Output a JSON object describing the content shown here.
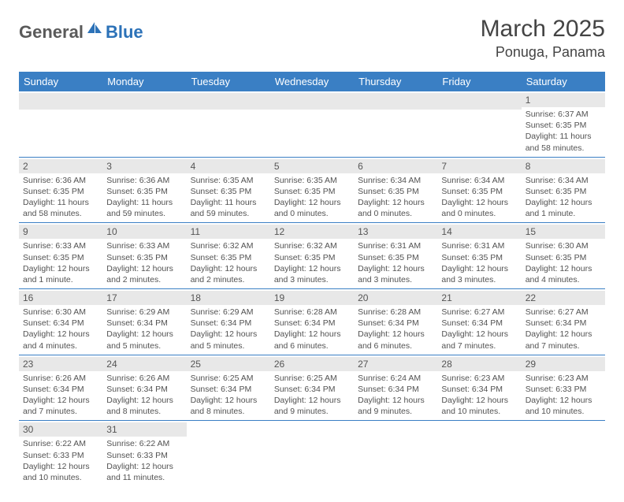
{
  "brand": {
    "part1": "General",
    "part2": "Blue"
  },
  "title": "March 2025",
  "location": "Ponuga, Panama",
  "colors": {
    "header_bg": "#3a7fc4",
    "header_text": "#ffffff",
    "daynum_bg": "#e8e8e8",
    "text": "#525252",
    "accent": "#2c72b8",
    "row_border": "#3a7fc4"
  },
  "weekdays": [
    "Sunday",
    "Monday",
    "Tuesday",
    "Wednesday",
    "Thursday",
    "Friday",
    "Saturday"
  ],
  "weeks": [
    [
      null,
      null,
      null,
      null,
      null,
      null,
      {
        "n": "1",
        "sr": "Sunrise: 6:37 AM",
        "ss": "Sunset: 6:35 PM",
        "dl": "Daylight: 11 hours and 58 minutes."
      }
    ],
    [
      {
        "n": "2",
        "sr": "Sunrise: 6:36 AM",
        "ss": "Sunset: 6:35 PM",
        "dl": "Daylight: 11 hours and 58 minutes."
      },
      {
        "n": "3",
        "sr": "Sunrise: 6:36 AM",
        "ss": "Sunset: 6:35 PM",
        "dl": "Daylight: 11 hours and 59 minutes."
      },
      {
        "n": "4",
        "sr": "Sunrise: 6:35 AM",
        "ss": "Sunset: 6:35 PM",
        "dl": "Daylight: 11 hours and 59 minutes."
      },
      {
        "n": "5",
        "sr": "Sunrise: 6:35 AM",
        "ss": "Sunset: 6:35 PM",
        "dl": "Daylight: 12 hours and 0 minutes."
      },
      {
        "n": "6",
        "sr": "Sunrise: 6:34 AM",
        "ss": "Sunset: 6:35 PM",
        "dl": "Daylight: 12 hours and 0 minutes."
      },
      {
        "n": "7",
        "sr": "Sunrise: 6:34 AM",
        "ss": "Sunset: 6:35 PM",
        "dl": "Daylight: 12 hours and 0 minutes."
      },
      {
        "n": "8",
        "sr": "Sunrise: 6:34 AM",
        "ss": "Sunset: 6:35 PM",
        "dl": "Daylight: 12 hours and 1 minute."
      }
    ],
    [
      {
        "n": "9",
        "sr": "Sunrise: 6:33 AM",
        "ss": "Sunset: 6:35 PM",
        "dl": "Daylight: 12 hours and 1 minute."
      },
      {
        "n": "10",
        "sr": "Sunrise: 6:33 AM",
        "ss": "Sunset: 6:35 PM",
        "dl": "Daylight: 12 hours and 2 minutes."
      },
      {
        "n": "11",
        "sr": "Sunrise: 6:32 AM",
        "ss": "Sunset: 6:35 PM",
        "dl": "Daylight: 12 hours and 2 minutes."
      },
      {
        "n": "12",
        "sr": "Sunrise: 6:32 AM",
        "ss": "Sunset: 6:35 PM",
        "dl": "Daylight: 12 hours and 3 minutes."
      },
      {
        "n": "13",
        "sr": "Sunrise: 6:31 AM",
        "ss": "Sunset: 6:35 PM",
        "dl": "Daylight: 12 hours and 3 minutes."
      },
      {
        "n": "14",
        "sr": "Sunrise: 6:31 AM",
        "ss": "Sunset: 6:35 PM",
        "dl": "Daylight: 12 hours and 3 minutes."
      },
      {
        "n": "15",
        "sr": "Sunrise: 6:30 AM",
        "ss": "Sunset: 6:35 PM",
        "dl": "Daylight: 12 hours and 4 minutes."
      }
    ],
    [
      {
        "n": "16",
        "sr": "Sunrise: 6:30 AM",
        "ss": "Sunset: 6:34 PM",
        "dl": "Daylight: 12 hours and 4 minutes."
      },
      {
        "n": "17",
        "sr": "Sunrise: 6:29 AM",
        "ss": "Sunset: 6:34 PM",
        "dl": "Daylight: 12 hours and 5 minutes."
      },
      {
        "n": "18",
        "sr": "Sunrise: 6:29 AM",
        "ss": "Sunset: 6:34 PM",
        "dl": "Daylight: 12 hours and 5 minutes."
      },
      {
        "n": "19",
        "sr": "Sunrise: 6:28 AM",
        "ss": "Sunset: 6:34 PM",
        "dl": "Daylight: 12 hours and 6 minutes."
      },
      {
        "n": "20",
        "sr": "Sunrise: 6:28 AM",
        "ss": "Sunset: 6:34 PM",
        "dl": "Daylight: 12 hours and 6 minutes."
      },
      {
        "n": "21",
        "sr": "Sunrise: 6:27 AM",
        "ss": "Sunset: 6:34 PM",
        "dl": "Daylight: 12 hours and 7 minutes."
      },
      {
        "n": "22",
        "sr": "Sunrise: 6:27 AM",
        "ss": "Sunset: 6:34 PM",
        "dl": "Daylight: 12 hours and 7 minutes."
      }
    ],
    [
      {
        "n": "23",
        "sr": "Sunrise: 6:26 AM",
        "ss": "Sunset: 6:34 PM",
        "dl": "Daylight: 12 hours and 7 minutes."
      },
      {
        "n": "24",
        "sr": "Sunrise: 6:26 AM",
        "ss": "Sunset: 6:34 PM",
        "dl": "Daylight: 12 hours and 8 minutes."
      },
      {
        "n": "25",
        "sr": "Sunrise: 6:25 AM",
        "ss": "Sunset: 6:34 PM",
        "dl": "Daylight: 12 hours and 8 minutes."
      },
      {
        "n": "26",
        "sr": "Sunrise: 6:25 AM",
        "ss": "Sunset: 6:34 PM",
        "dl": "Daylight: 12 hours and 9 minutes."
      },
      {
        "n": "27",
        "sr": "Sunrise: 6:24 AM",
        "ss": "Sunset: 6:34 PM",
        "dl": "Daylight: 12 hours and 9 minutes."
      },
      {
        "n": "28",
        "sr": "Sunrise: 6:23 AM",
        "ss": "Sunset: 6:34 PM",
        "dl": "Daylight: 12 hours and 10 minutes."
      },
      {
        "n": "29",
        "sr": "Sunrise: 6:23 AM",
        "ss": "Sunset: 6:33 PM",
        "dl": "Daylight: 12 hours and 10 minutes."
      }
    ],
    [
      {
        "n": "30",
        "sr": "Sunrise: 6:22 AM",
        "ss": "Sunset: 6:33 PM",
        "dl": "Daylight: 12 hours and 10 minutes."
      },
      {
        "n": "31",
        "sr": "Sunrise: 6:22 AM",
        "ss": "Sunset: 6:33 PM",
        "dl": "Daylight: 12 hours and 11 minutes."
      },
      null,
      null,
      null,
      null,
      null
    ]
  ]
}
